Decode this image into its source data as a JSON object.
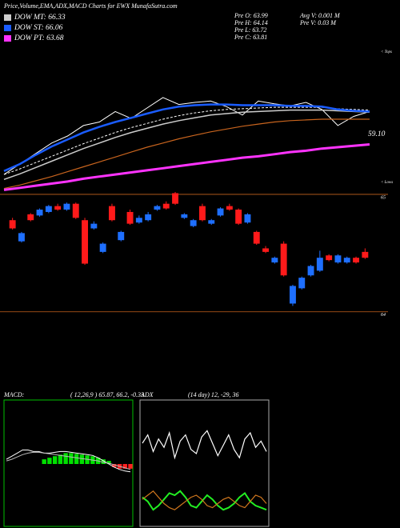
{
  "chart_data": [
    {
      "type": "line",
      "title": "Price,Volume,EMA,ADX,MACD Charts for EWX  MunafaSutra.com",
      "stats": [
        "Pre  O: 63.99",
        "Pre  H: 64.14",
        "Pre  L: 63.72",
        "Pre  C: 63.81",
        "Avg  V: 0.001 M",
        "Pre  V: 0.03 M"
      ],
      "annotations": [
        "59.10",
        "< Tops",
        "< Lows"
      ],
      "ylim": [
        52,
        72
      ],
      "series": [
        {
          "color": "#ffffff",
          "width": 1,
          "values": [
            54.5,
            56,
            57.5,
            59,
            60,
            61.5,
            62,
            63.5,
            62.5,
            64,
            65.5,
            64.5,
            64.8,
            65,
            64.2,
            63,
            65,
            64.6,
            64.3,
            64.8,
            63.8,
            61.5,
            62.8,
            63.5
          ]
        },
        {
          "color": "#ffffff",
          "width": 1,
          "dash": true,
          "values": [
            54.5,
            55.3,
            56.2,
            57.1,
            58,
            58.9,
            59.7,
            60.5,
            61.2,
            61.8,
            62.4,
            62.9,
            63.3,
            63.6,
            63.8,
            63.9,
            64,
            64.1,
            64.1,
            64.1,
            64.1,
            63.9,
            63.8,
            63.7
          ]
        },
        {
          "name": "DOW MT: 66.33",
          "color": "#cccccc",
          "width": 1.5,
          "values": [
            53.8,
            54.6,
            55.5,
            56.4,
            57.3,
            58.2,
            59,
            59.8,
            60.5,
            61.1,
            61.7,
            62.2,
            62.6,
            63,
            63.2,
            63.4,
            63.5,
            63.6,
            63.7,
            63.7,
            63.7,
            63.6,
            63.5,
            63.4
          ]
        },
        {
          "name": "DOW ST: 66.06",
          "color": "#1a5cff",
          "width": 2.5,
          "values": [
            55,
            56,
            57.3,
            58.5,
            59.5,
            60.5,
            61.3,
            62,
            62.6,
            63.2,
            63.8,
            64.2,
            64.4,
            64.5,
            64.5,
            64.4,
            64.4,
            64.4,
            64.3,
            64.3,
            64.2,
            63.8,
            63.6,
            63.5
          ]
        },
        {
          "color": "#c8641e",
          "width": 1.2,
          "values": [
            52.5,
            53,
            53.6,
            54.2,
            54.9,
            55.6,
            56.3,
            57,
            57.7,
            58.4,
            59,
            59.6,
            60.1,
            60.6,
            61,
            61.4,
            61.7,
            62,
            62.2,
            62.3,
            62.4,
            62.4,
            62.4,
            62.4
          ]
        },
        {
          "name": "DOW PT: 63.68",
          "color": "#ff33ff",
          "width": 3,
          "values": [
            52.3,
            52.6,
            52.9,
            53.2,
            53.5,
            53.9,
            54.2,
            54.5,
            54.8,
            55.1,
            55.4,
            55.7,
            56,
            56.3,
            56.6,
            56.9,
            57.1,
            57.4,
            57.7,
            57.9,
            58.2,
            58.4,
            58.6,
            58.8
          ]
        }
      ]
    },
    {
      "type": "candlestick",
      "ylim": [
        63.93,
        65.02
      ],
      "yticks": [
        64,
        65
      ],
      "grid": true,
      "grid_color": "#c8641e",
      "up_color": "#1e6fff",
      "down_color": "#ff1a1a",
      "open": [
        64.78,
        64.6,
        64.83,
        64.82,
        64.85,
        64.9,
        64.87,
        64.92,
        64.78,
        64.71,
        64.51,
        64.9,
        64.61,
        64.85,
        64.76,
        64.78,
        64.87,
        64.92,
        65.01,
        64.8,
        64.73,
        64.9,
        64.75,
        64.82,
        64.9,
        64.87,
        64.76,
        64.68,
        64.54,
        64.42,
        64.58,
        64.07,
        64.2,
        64.31,
        64.35,
        64.48,
        64.42,
        64.42,
        64.46,
        64.51
      ],
      "high": [
        64.8,
        64.68,
        64.84,
        64.88,
        64.91,
        64.92,
        64.93,
        64.93,
        64.8,
        64.77,
        64.59,
        64.92,
        64.69,
        64.87,
        64.82,
        64.85,
        64.91,
        64.94,
        65.02,
        64.84,
        64.79,
        64.92,
        64.79,
        64.89,
        64.92,
        64.88,
        64.84,
        64.69,
        64.56,
        64.47,
        64.6,
        64.23,
        64.3,
        64.4,
        64.52,
        64.49,
        64.49,
        64.47,
        64.47,
        64.54
      ],
      "low": [
        64.7,
        64.59,
        64.77,
        64.81,
        64.84,
        64.86,
        64.86,
        64.79,
        64.4,
        64.7,
        64.5,
        64.77,
        64.6,
        64.74,
        64.75,
        64.77,
        64.86,
        64.87,
        64.91,
        64.79,
        64.72,
        64.77,
        64.74,
        64.81,
        64.86,
        64.74,
        64.75,
        64.57,
        64.5,
        64.41,
        64.3,
        64.05,
        64.19,
        64.3,
        64.34,
        64.43,
        64.41,
        64.41,
        64.41,
        64.45
      ],
      "close": [
        64.71,
        64.67,
        64.78,
        64.87,
        64.9,
        64.87,
        64.92,
        64.8,
        64.41,
        64.75,
        64.58,
        64.78,
        64.68,
        64.75,
        64.8,
        64.83,
        64.9,
        64.88,
        64.92,
        64.83,
        64.78,
        64.78,
        64.78,
        64.88,
        64.87,
        64.75,
        64.83,
        64.58,
        64.51,
        64.46,
        64.31,
        64.22,
        64.29,
        64.39,
        64.46,
        64.44,
        64.48,
        64.46,
        64.42,
        64.46
      ]
    },
    {
      "type": "macd",
      "title": "MACD:",
      "subtitle": "( 12,26,9 ) 65.87, 66.2, -0.33",
      "ylim": [
        -4,
        4
      ],
      "up_color": "#00e000",
      "down_color": "#ff2020",
      "border": "#00c000",
      "histogram": [
        0,
        0,
        0,
        0,
        0,
        0,
        0,
        0.3,
        0.4,
        0.5,
        0.6,
        0.7,
        0.7,
        0.65,
        0.6,
        0.55,
        0.5,
        0.4,
        0.3,
        0.2,
        -0.2,
        -0.3,
        -0.3,
        -0.3
      ],
      "series": [
        {
          "color": "#ffffff",
          "values": [
            0.3,
            0.5,
            0.7,
            0.9,
            0.9,
            0.8,
            0.8,
            0.7,
            0.7,
            0.75,
            0.8,
            0.8,
            0.75,
            0.7,
            0.65,
            0.6,
            0.55,
            0.4,
            0.2,
            0.0,
            -0.2,
            -0.35,
            -0.45,
            -0.5
          ]
        },
        {
          "color": "#bbbbbb",
          "values": [
            0.2,
            0.3,
            0.45,
            0.6,
            0.7,
            0.75,
            0.75,
            0.7,
            0.65,
            0.6,
            0.55,
            0.5,
            0.45,
            0.4,
            0.35,
            0.3,
            0.25,
            0.2,
            0.1,
            0.05,
            -0.05,
            -0.15,
            -0.25,
            -0.35
          ]
        }
      ]
    },
    {
      "type": "line",
      "title": "ADX",
      "subtitle": "(14 day) 12, -29, 36",
      "ylim": [
        0,
        60
      ],
      "border": "#aaaaaa",
      "series": [
        {
          "color": "#ffffff",
          "width": 1.2,
          "values": [
            40,
            44,
            36,
            42,
            38,
            45,
            33,
            41,
            44,
            37,
            35,
            43,
            46,
            40,
            34,
            39,
            44,
            37,
            33,
            42,
            45,
            38,
            41,
            36
          ]
        },
        {
          "color": "#22ee22",
          "width": 2,
          "values": [
            14,
            12,
            8,
            10,
            13,
            16,
            15,
            17,
            14,
            10,
            9,
            12,
            15,
            13,
            10,
            8,
            9,
            11,
            14,
            16,
            12,
            10,
            9,
            8
          ]
        },
        {
          "color": "#d2781e",
          "width": 1.2,
          "values": [
            13,
            15,
            17,
            14,
            11,
            9,
            8,
            10,
            12,
            14,
            15,
            13,
            10,
            9,
            11,
            13,
            14,
            12,
            10,
            9,
            12,
            15,
            14,
            11
          ]
        }
      ]
    }
  ]
}
